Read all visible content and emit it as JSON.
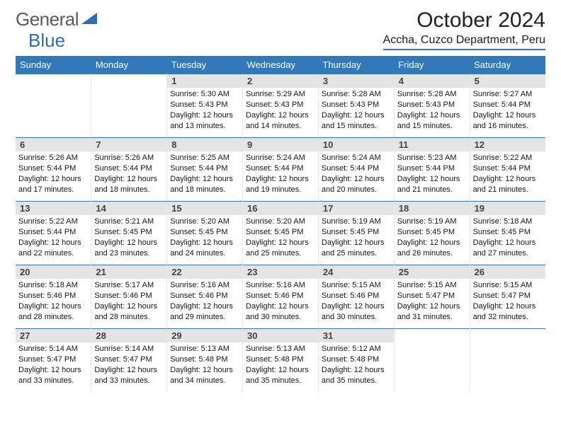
{
  "logo": {
    "part1": "General",
    "part2": "Blue",
    "triangle_color": "#2b6fb5",
    "general_color": "#5a5a5a",
    "blue_color": "#2b6fb5"
  },
  "title": {
    "month_year": "October 2024",
    "location": "Accha, Cuzco Department, Peru"
  },
  "colors": {
    "header_bg": "#3179b9",
    "row_border": "#3179b9",
    "daynum_bg": "#e4e4e4"
  },
  "weekdays": [
    "Sunday",
    "Monday",
    "Tuesday",
    "Wednesday",
    "Thursday",
    "Friday",
    "Saturday"
  ],
  "leading_blanks": 2,
  "days": [
    {
      "n": "1",
      "sunrise": "5:30 AM",
      "sunset": "5:43 PM",
      "daylight": "12 hours and 13 minutes."
    },
    {
      "n": "2",
      "sunrise": "5:29 AM",
      "sunset": "5:43 PM",
      "daylight": "12 hours and 14 minutes."
    },
    {
      "n": "3",
      "sunrise": "5:28 AM",
      "sunset": "5:43 PM",
      "daylight": "12 hours and 15 minutes."
    },
    {
      "n": "4",
      "sunrise": "5:28 AM",
      "sunset": "5:43 PM",
      "daylight": "12 hours and 15 minutes."
    },
    {
      "n": "5",
      "sunrise": "5:27 AM",
      "sunset": "5:44 PM",
      "daylight": "12 hours and 16 minutes."
    },
    {
      "n": "6",
      "sunrise": "5:26 AM",
      "sunset": "5:44 PM",
      "daylight": "12 hours and 17 minutes."
    },
    {
      "n": "7",
      "sunrise": "5:26 AM",
      "sunset": "5:44 PM",
      "daylight": "12 hours and 18 minutes."
    },
    {
      "n": "8",
      "sunrise": "5:25 AM",
      "sunset": "5:44 PM",
      "daylight": "12 hours and 18 minutes."
    },
    {
      "n": "9",
      "sunrise": "5:24 AM",
      "sunset": "5:44 PM",
      "daylight": "12 hours and 19 minutes."
    },
    {
      "n": "10",
      "sunrise": "5:24 AM",
      "sunset": "5:44 PM",
      "daylight": "12 hours and 20 minutes."
    },
    {
      "n": "11",
      "sunrise": "5:23 AM",
      "sunset": "5:44 PM",
      "daylight": "12 hours and 21 minutes."
    },
    {
      "n": "12",
      "sunrise": "5:22 AM",
      "sunset": "5:44 PM",
      "daylight": "12 hours and 21 minutes."
    },
    {
      "n": "13",
      "sunrise": "5:22 AM",
      "sunset": "5:44 PM",
      "daylight": "12 hours and 22 minutes."
    },
    {
      "n": "14",
      "sunrise": "5:21 AM",
      "sunset": "5:45 PM",
      "daylight": "12 hours and 23 minutes."
    },
    {
      "n": "15",
      "sunrise": "5:20 AM",
      "sunset": "5:45 PM",
      "daylight": "12 hours and 24 minutes."
    },
    {
      "n": "16",
      "sunrise": "5:20 AM",
      "sunset": "5:45 PM",
      "daylight": "12 hours and 25 minutes."
    },
    {
      "n": "17",
      "sunrise": "5:19 AM",
      "sunset": "5:45 PM",
      "daylight": "12 hours and 25 minutes."
    },
    {
      "n": "18",
      "sunrise": "5:19 AM",
      "sunset": "5:45 PM",
      "daylight": "12 hours and 26 minutes."
    },
    {
      "n": "19",
      "sunrise": "5:18 AM",
      "sunset": "5:45 PM",
      "daylight": "12 hours and 27 minutes."
    },
    {
      "n": "20",
      "sunrise": "5:18 AM",
      "sunset": "5:46 PM",
      "daylight": "12 hours and 28 minutes."
    },
    {
      "n": "21",
      "sunrise": "5:17 AM",
      "sunset": "5:46 PM",
      "daylight": "12 hours and 28 minutes."
    },
    {
      "n": "22",
      "sunrise": "5:16 AM",
      "sunset": "5:46 PM",
      "daylight": "12 hours and 29 minutes."
    },
    {
      "n": "23",
      "sunrise": "5:16 AM",
      "sunset": "5:46 PM",
      "daylight": "12 hours and 30 minutes."
    },
    {
      "n": "24",
      "sunrise": "5:15 AM",
      "sunset": "5:46 PM",
      "daylight": "12 hours and 30 minutes."
    },
    {
      "n": "25",
      "sunrise": "5:15 AM",
      "sunset": "5:47 PM",
      "daylight": "12 hours and 31 minutes."
    },
    {
      "n": "26",
      "sunrise": "5:15 AM",
      "sunset": "5:47 PM",
      "daylight": "12 hours and 32 minutes."
    },
    {
      "n": "27",
      "sunrise": "5:14 AM",
      "sunset": "5:47 PM",
      "daylight": "12 hours and 33 minutes."
    },
    {
      "n": "28",
      "sunrise": "5:14 AM",
      "sunset": "5:47 PM",
      "daylight": "12 hours and 33 minutes."
    },
    {
      "n": "29",
      "sunrise": "5:13 AM",
      "sunset": "5:48 PM",
      "daylight": "12 hours and 34 minutes."
    },
    {
      "n": "30",
      "sunrise": "5:13 AM",
      "sunset": "5:48 PM",
      "daylight": "12 hours and 35 minutes."
    },
    {
      "n": "31",
      "sunrise": "5:12 AM",
      "sunset": "5:48 PM",
      "daylight": "12 hours and 35 minutes."
    }
  ],
  "labels": {
    "sunrise": "Sunrise:",
    "sunset": "Sunset:",
    "daylight": "Daylight:"
  }
}
